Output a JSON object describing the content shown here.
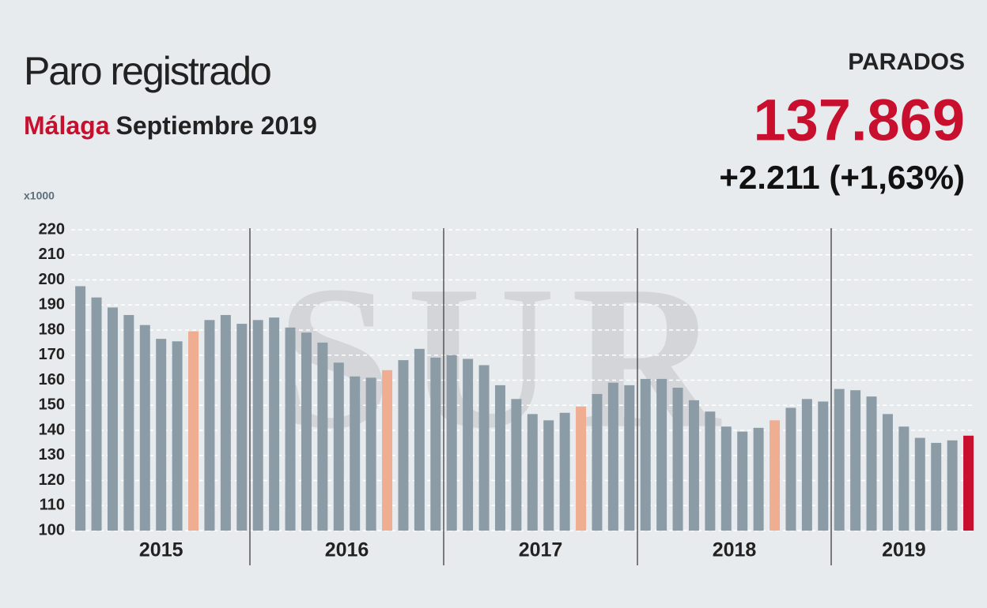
{
  "chart_data": {
    "type": "bar",
    "title": "Paro registrado",
    "subtitle_place": "Málaga",
    "subtitle_period": "Septiembre 2019",
    "kpi_label": "PARADOS",
    "kpi_value": "137.869",
    "kpi_change": "+2.211 (+1,63%)",
    "unit_label": "x1000",
    "watermark": "SUR",
    "ylim": [
      100,
      220
    ],
    "yticks": [
      100,
      110,
      120,
      130,
      140,
      150,
      160,
      170,
      180,
      190,
      200,
      210,
      220
    ],
    "grid": true,
    "color": "#8c9ca6",
    "groups": [
      {
        "label": "2015",
        "values": [
          197.5,
          193,
          189,
          186,
          182,
          176.5,
          175.5,
          179.5,
          184,
          186,
          182.5
        ],
        "highlight": 7,
        "highlight_color": "#efae92"
      },
      {
        "label": "2016",
        "values": [
          184,
          185,
          181,
          179,
          175,
          167,
          161.5,
          161,
          164,
          168,
          172.5,
          169
        ],
        "highlight": 8,
        "highlight_color": "#efae92"
      },
      {
        "label": "2017",
        "values": [
          170,
          168.5,
          166,
          158,
          152.5,
          146.5,
          144,
          147,
          149.5,
          154.5,
          159,
          158
        ],
        "highlight": 8,
        "highlight_color": "#efae92"
      },
      {
        "label": "2018",
        "values": [
          160.5,
          160.5,
          157,
          152,
          147.5,
          141.5,
          139.5,
          141,
          144,
          149,
          152.5,
          151.5
        ],
        "highlight": 8,
        "highlight_color": "#efae92"
      },
      {
        "label": "2019",
        "values": [
          156.5,
          156,
          153.5,
          146.5,
          141.5,
          137,
          135,
          136,
          137.869
        ],
        "highlight": 8,
        "highlight_color": "#c8102e"
      }
    ]
  }
}
